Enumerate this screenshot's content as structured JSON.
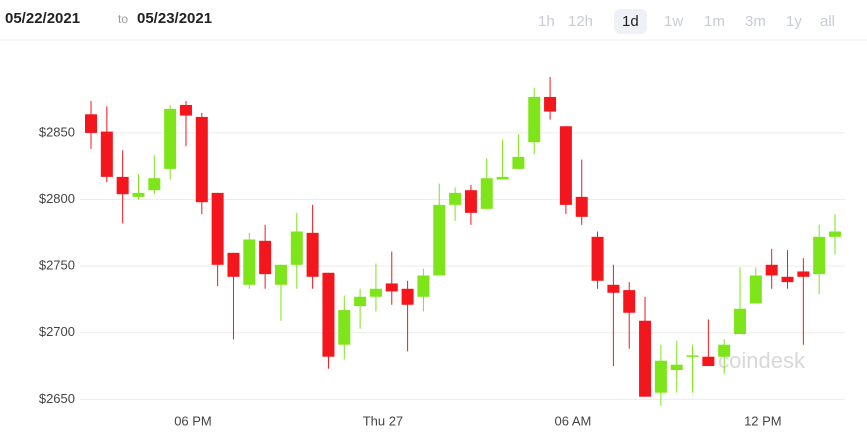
{
  "header": {
    "from": "05/22/2021",
    "to_word": "to",
    "to": "05/23/2021",
    "ranges": [
      "1h",
      "12h",
      "1d",
      "1w",
      "1m",
      "3m",
      "1y",
      "all"
    ],
    "selected": "1d"
  },
  "chart_data": {
    "type": "candlestick",
    "watermark": "coindesk",
    "categories": [
      null,
      null,
      null,
      null,
      null,
      null,
      "06 PM",
      null,
      null,
      null,
      null,
      null,
      null,
      null,
      null,
      null,
      null,
      null,
      "Thu 27",
      null,
      null,
      null,
      null,
      null,
      null,
      null,
      null,
      null,
      null,
      null,
      "06 AM",
      null,
      null,
      null,
      null,
      null,
      null,
      null,
      null,
      null,
      null,
      null,
      "12 PM",
      null,
      null,
      null,
      null,
      null
    ],
    "open": [
      2864,
      2851,
      2817,
      2802,
      2807,
      2823,
      2871,
      2862,
      2805,
      2760,
      2736,
      2769,
      2736,
      2751,
      2775,
      2745,
      2691,
      2720,
      2727,
      2737,
      2733,
      2727,
      2743,
      2796,
      2807,
      2793,
      2815,
      2823,
      2843,
      2877,
      2855,
      2802,
      2772,
      2736,
      2732,
      2709,
      2655,
      2672,
      2683,
      2682,
      2682,
      2699,
      2722,
      2751,
      2742,
      2746,
      2744,
      2772
    ],
    "high": [
      2874,
      2870,
      2837,
      2819,
      2833,
      2871,
      2874,
      2865,
      2805,
      2760,
      2775,
      2781,
      2751,
      2790,
      2796,
      2745,
      2728,
      2733,
      2752,
      2761,
      2739,
      2748,
      2812,
      2809,
      2811,
      2831,
      2845,
      2849,
      2884,
      2892,
      2855,
      2830,
      2776,
      2751,
      2738,
      2727,
      2691,
      2694,
      2691,
      2710,
      2695,
      2749,
      2749,
      2763,
      2762,
      2756,
      2781,
      2789
    ],
    "low": [
      2838,
      2813,
      2782,
      2800,
      2804,
      2815,
      2840,
      2789,
      2735,
      2695,
      2733,
      2733,
      2709,
      2733,
      2733,
      2673,
      2680,
      2703,
      2716,
      2721,
      2686,
      2716,
      2743,
      2784,
      2781,
      2793,
      2815,
      2823,
      2834,
      2860,
      2789,
      2781,
      2733,
      2675,
      2688,
      2652,
      2645,
      2655,
      2655,
      2675,
      2669,
      2699,
      2722,
      2733,
      2733,
      2691,
      2729,
      2759
    ],
    "close": [
      2850,
      2817,
      2804,
      2805,
      2816,
      2868,
      2863,
      2798,
      2751,
      2742,
      2770,
      2744,
      2751,
      2776,
      2742,
      2682,
      2717,
      2727,
      2733,
      2731,
      2721,
      2743,
      2796,
      2805,
      2790,
      2816,
      2817,
      2832,
      2877,
      2866,
      2796,
      2787,
      2739,
      2730,
      2715,
      2652,
      2679,
      2676,
      2683,
      2675,
      2691,
      2718,
      2743,
      2743,
      2738,
      2742,
      2772,
      2776
    ],
    "up_color": "#7ee51a",
    "down_color": "#f4161d",
    "ylim": [
      2642,
      2916
    ],
    "yticks": [
      {
        "value": 2650,
        "label": "$2650"
      },
      {
        "value": 2700,
        "label": "$2700"
      },
      {
        "value": 2750,
        "label": "$2750"
      },
      {
        "value": 2800,
        "label": "$2800"
      },
      {
        "value": 2850,
        "label": "$2850"
      }
    ],
    "grid": true
  }
}
